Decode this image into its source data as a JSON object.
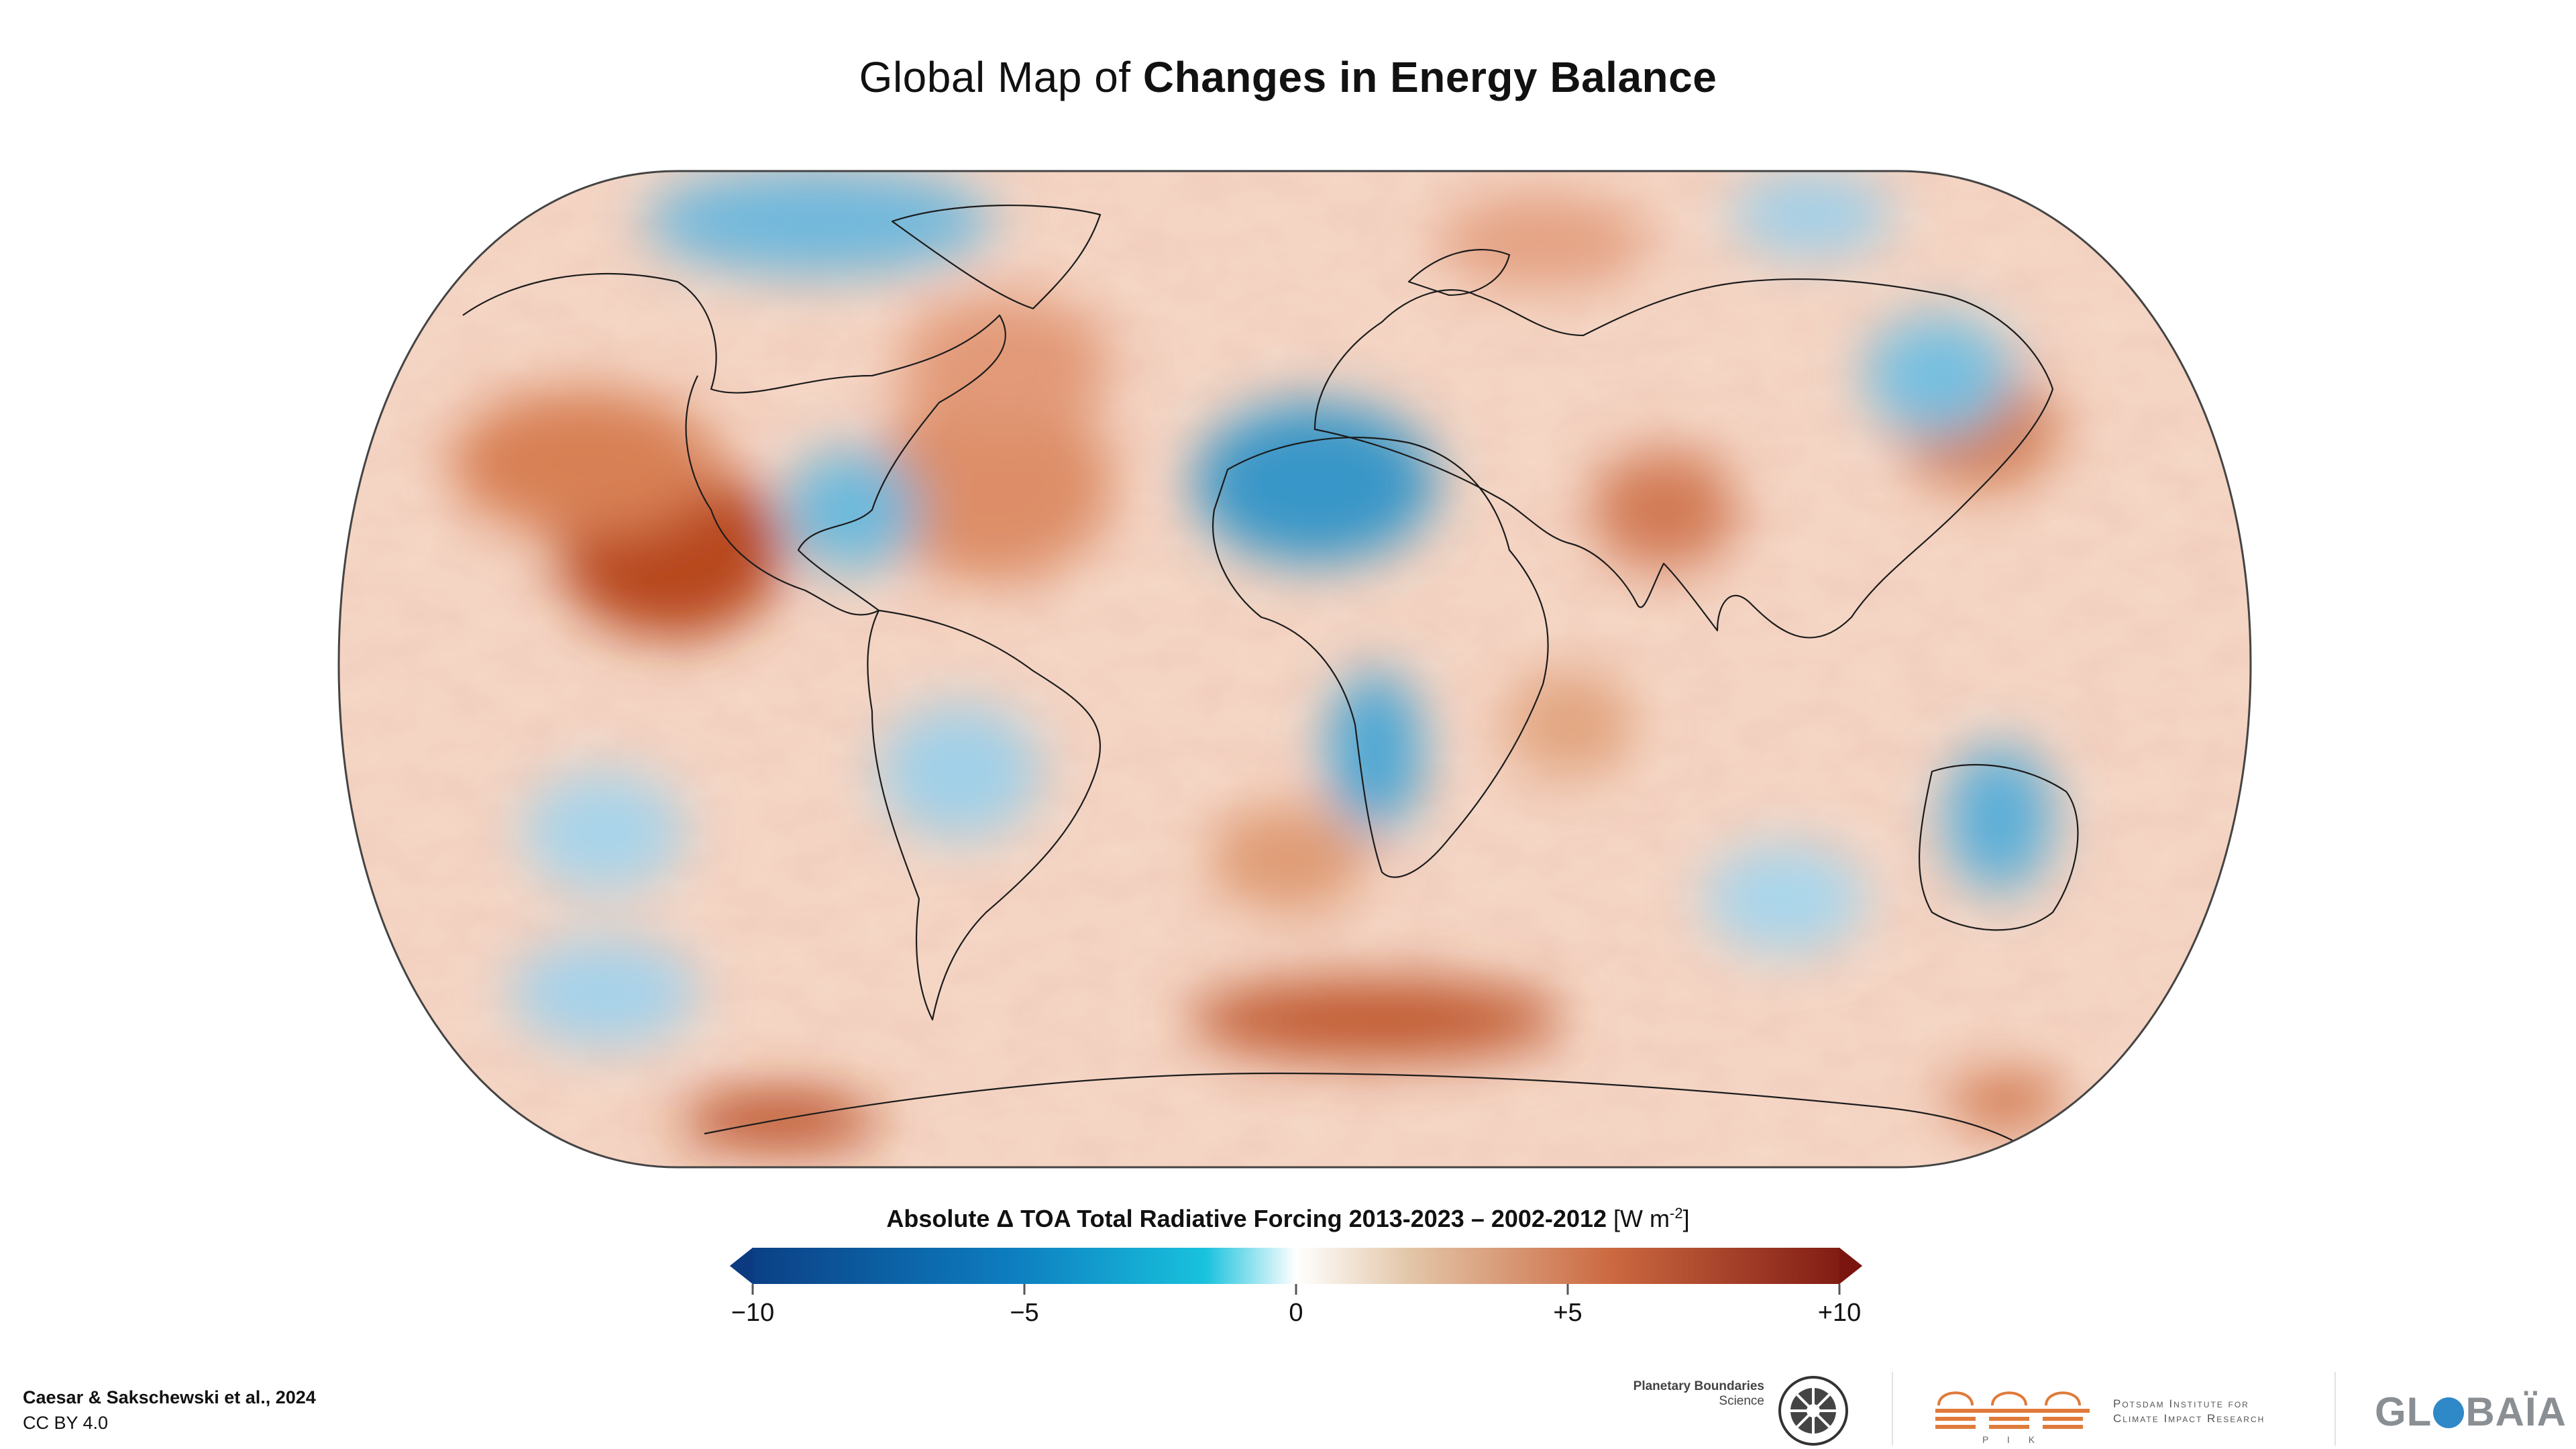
{
  "title": {
    "regular": "Global Map of ",
    "bold": "Changes in Energy Balance"
  },
  "colorbar": {
    "title_bold": "Absolute Δ TOA Total Radiative Forcing 2013-2023 – 2002-2012",
    "unit_pre": "[W m",
    "unit_exp": "-2",
    "unit_post": "]",
    "ticks": [
      {
        "label": "−10",
        "value": -10
      },
      {
        "label": "−5",
        "value": -5
      },
      {
        "label": "0",
        "value": 0
      },
      {
        "label": "+5",
        "value": 5
      },
      {
        "label": "+10",
        "value": 10
      }
    ],
    "range": [
      -10,
      10
    ],
    "colors": [
      "#08306b",
      "#0b6ab0",
      "#10b8d8",
      "#ffffff",
      "#dcb898",
      "#c05a30",
      "#6e0a0a"
    ]
  },
  "credit": {
    "authors": "Caesar & Sakschewski et al., 2024",
    "license": "CC BY 4.0"
  },
  "logos": {
    "pb_line1": "Planetary Boundaries",
    "pb_line2": "Science",
    "pik_line1": "Potsdam Institute for",
    "pik_line2": "Climate Impact Research",
    "pik_abbr": "P I K",
    "globaia_pre": "GL",
    "globaia_post": "BAÏA"
  }
}
